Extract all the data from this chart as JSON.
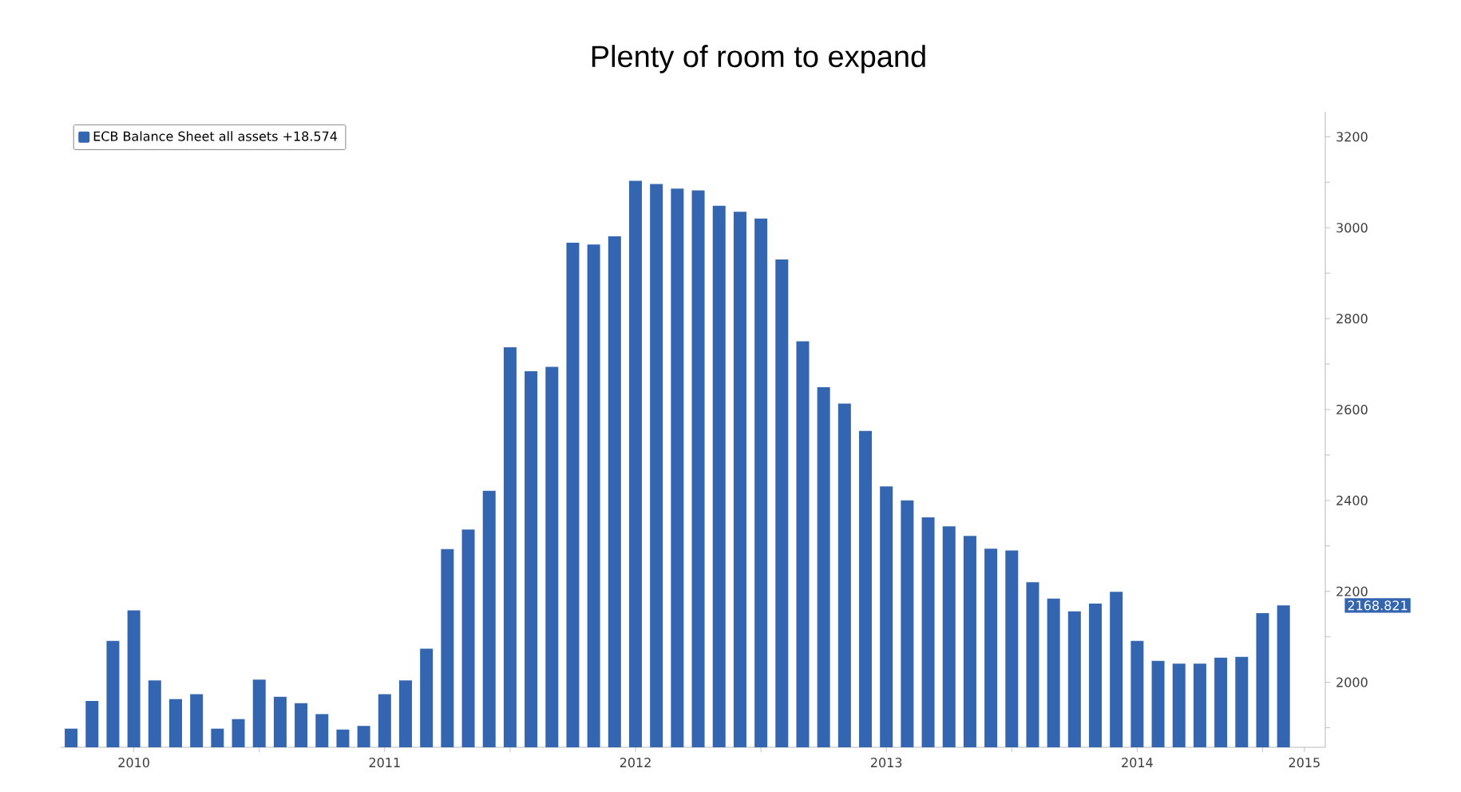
{
  "chart_data": {
    "type": "bar",
    "title": "Plenty of room to expand",
    "x": [
      "2010-04",
      "2010-05",
      "2010-06",
      "2010-07",
      "2010-08",
      "2010-09",
      "2010-10",
      "2010-11",
      "2010-12",
      "2011-01",
      "2011-02",
      "2011-03",
      "2011-04",
      "2011-05",
      "2011-06",
      "2011-07",
      "2011-08",
      "2011-09",
      "2011-10",
      "2011-11",
      "2011-12",
      "2012-01",
      "2012-02",
      "2012-03",
      "2012-04",
      "2012-05",
      "2012-06",
      "2012-07",
      "2012-08",
      "2012-09",
      "2012-10",
      "2012-11",
      "2012-12",
      "2013-01",
      "2013-02",
      "2013-03",
      "2013-04",
      "2013-05",
      "2013-06",
      "2013-07",
      "2013-08",
      "2013-09",
      "2013-10",
      "2013-11",
      "2013-12",
      "2014-01",
      "2014-02",
      "2014-03",
      "2014-04",
      "2014-05",
      "2014-06",
      "2014-07",
      "2014-08",
      "2014-09",
      "2014-10",
      "2014-11",
      "2014-12",
      "2015-01",
      "2015-02"
    ],
    "series": [
      {
        "name": "ECB Balance Sheet all assets +18.574",
        "color": "#3465b0",
        "values": [
          1898,
          1959,
          2091,
          2158,
          2004,
          1963,
          1974,
          1898,
          1919,
          2006,
          1968,
          1954,
          1930,
          1896,
          1904,
          1974,
          2004,
          2074,
          2293,
          2336,
          2421,
          2737,
          2684,
          2694,
          2967,
          2963,
          2981,
          3103,
          3096,
          3086,
          3082,
          3048,
          3035,
          3020,
          2930,
          2750,
          2649,
          2613,
          2553,
          2431,
          2400,
          2363,
          2343,
          2322,
          2294,
          2290,
          2220,
          2184,
          2156,
          2173,
          2199,
          2091,
          2047,
          2041,
          2041,
          2054,
          2056,
          2152,
          2169
        ]
      }
    ],
    "xlim": [
      "2010-03-16",
      "2015-04-01"
    ],
    "xticks": [
      {
        "value": "2010-07-01",
        "label": "2010"
      },
      {
        "value": "2011-01",
        "label": null
      },
      {
        "value": "2011-07-01",
        "label": "2011"
      },
      {
        "value": "2012-01",
        "label": null
      },
      {
        "value": "2012-07-01",
        "label": "2012"
      },
      {
        "value": "2013-01",
        "label": null
      },
      {
        "value": "2013-07-01",
        "label": "2013"
      },
      {
        "value": "2014-01",
        "label": null
      },
      {
        "value": "2014-07-01",
        "label": "2014"
      },
      {
        "value": "2015-01",
        "label": null
      },
      {
        "value": "2015-03",
        "label": "2015"
      }
    ],
    "ylim": [
      1857,
      3255
    ],
    "yticks": [
      {
        "value": 1900,
        "label": null
      },
      2000,
      {
        "value": 2100,
        "label": null
      },
      2200,
      {
        "value": 2300,
        "label": null
      },
      2400,
      {
        "value": 2500,
        "label": null
      },
      2600,
      {
        "value": 2700,
        "label": null
      },
      2800,
      {
        "value": 2900,
        "label": null
      },
      3000,
      {
        "value": 3100,
        "label": null
      },
      3200
    ],
    "annotations": [
      "2168.821"
    ],
    "legend": "top left",
    "grid": false
  }
}
